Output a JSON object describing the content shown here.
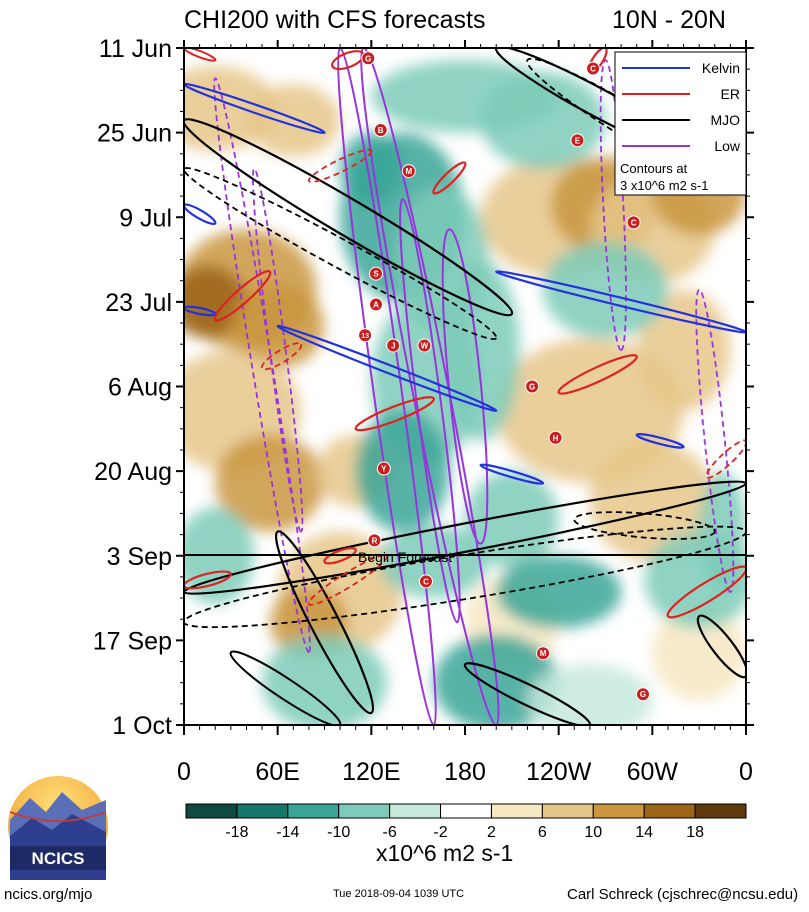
{
  "chart_data": {
    "type": "heatmap",
    "title": "CHI200 with CFS forecasts",
    "region": "10N - 20N",
    "y_ticks": [
      "11 Jun",
      "25 Jun",
      "9 Jul",
      "23 Jul",
      "6 Aug",
      "20 Aug",
      "3 Sep",
      "17 Sep",
      "1 Oct"
    ],
    "x_ticks": [
      "0",
      "60E",
      "120E",
      "180",
      "120W",
      "60W",
      "0"
    ],
    "x_range_deg_east": [
      0,
      360
    ],
    "forecast_marker_label": "Begin Forecast",
    "forecast_start": "3 Sep",
    "legend": {
      "entries": [
        {
          "name": "Kelvin",
          "color": "#2233dd"
        },
        {
          "name": "ER",
          "color": "#dd2222"
        },
        {
          "name": "MJO",
          "color": "#000000"
        },
        {
          "name": "Low",
          "color": "#9933dd"
        }
      ],
      "note_line1": "Contours at",
      "note_line2": "3 x10^6 m2 s-1"
    },
    "colorbar": {
      "ticks": [
        "-18",
        "-14",
        "-10",
        "-6",
        "-2",
        "2",
        "6",
        "10",
        "14",
        "18"
      ],
      "colors": [
        "#0e4a3f",
        "#17766a",
        "#3aa698",
        "#7dcbb8",
        "#c6e9dd",
        "#ffffff",
        "#f6e8c2",
        "#e6c789",
        "#c9973e",
        "#9b6418",
        "#5e3a0c"
      ],
      "units": "x10^6 m2 s-1"
    },
    "storms": [
      {
        "label": "G",
        "date_index": 1,
        "lon": 118
      },
      {
        "label": "C",
        "date_index": 2,
        "lon": 262
      },
      {
        "label": "B",
        "date_index": 8,
        "lon": 126
      },
      {
        "label": "E",
        "date_index": 9,
        "lon": 252
      },
      {
        "label": "M",
        "date_index": 12,
        "lon": 144
      },
      {
        "label": "C",
        "date_index": 17,
        "lon": 288
      },
      {
        "label": "S",
        "date_index": 22,
        "lon": 123
      },
      {
        "label": "A",
        "date_index": 25,
        "lon": 123
      },
      {
        "label": "13",
        "date_index": 28,
        "lon": 116
      },
      {
        "label": "J",
        "date_index": 29,
        "lon": 134
      },
      {
        "label": "W",
        "date_index": 29,
        "lon": 154
      },
      {
        "label": "G",
        "date_index": 33,
        "lon": 223
      },
      {
        "label": "H",
        "date_index": 38,
        "lon": 238
      },
      {
        "label": "Y",
        "date_index": 41,
        "lon": 128
      },
      {
        "label": "R",
        "date_index": 48,
        "lon": 122
      },
      {
        "label": "C",
        "date_index": 52,
        "lon": 155
      },
      {
        "label": "M",
        "date_index": 59,
        "lon": 230
      },
      {
        "label": "G",
        "date_index": 63,
        "lon": 294
      }
    ]
  }
}
